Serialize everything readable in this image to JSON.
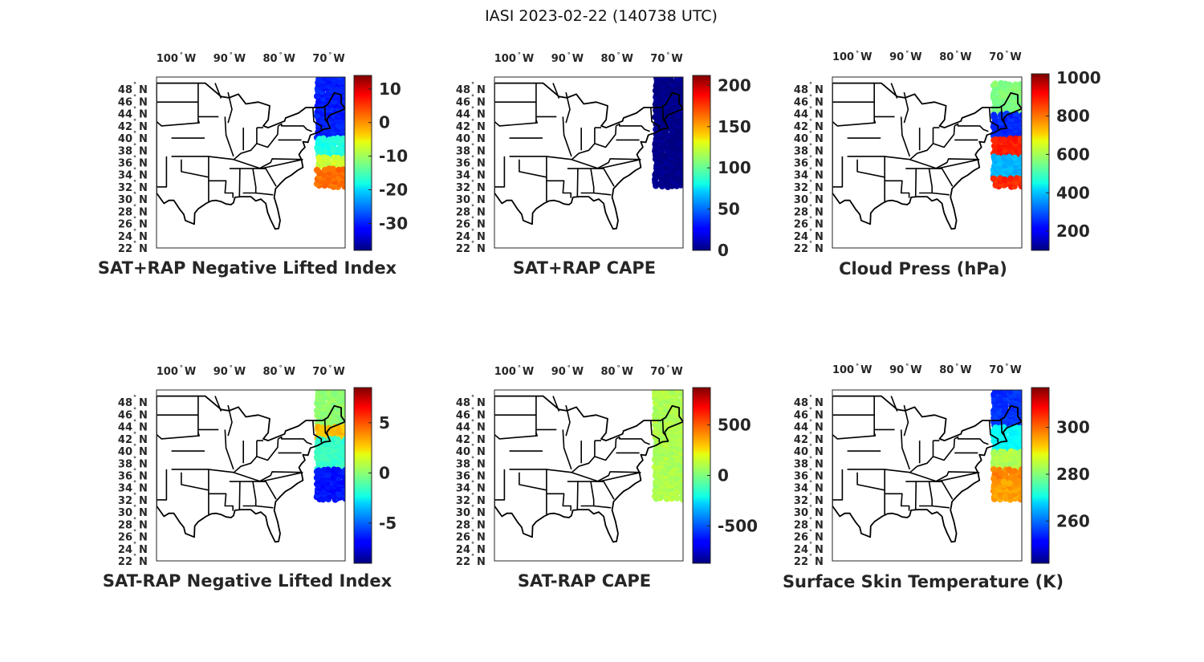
{
  "suptitle": "IASI 2023-02-22 (140738 UTC)",
  "map": {
    "lon_ticks": [
      {
        "deg": "100",
        "sup": "°",
        "hemi": "W",
        "value": -100
      },
      {
        "deg": "90",
        "sup": "°",
        "hemi": "W",
        "value": -90
      },
      {
        "deg": "80",
        "sup": "°",
        "hemi": "W",
        "value": -80
      },
      {
        "deg": "70",
        "sup": "°",
        "hemi": "W",
        "value": -70
      }
    ],
    "lat_ticks": [
      {
        "deg": "48",
        "sup": "°",
        "hemi": "N",
        "value": 48
      },
      {
        "deg": "46",
        "sup": "°",
        "hemi": "N",
        "value": 46
      },
      {
        "deg": "44",
        "sup": "°",
        "hemi": "N",
        "value": 44
      },
      {
        "deg": "42",
        "sup": "°",
        "hemi": "N",
        "value": 42
      },
      {
        "deg": "40",
        "sup": "°",
        "hemi": "N",
        "value": 40
      },
      {
        "deg": "38",
        "sup": "°",
        "hemi": "N",
        "value": 38
      },
      {
        "deg": "36",
        "sup": "°",
        "hemi": "N",
        "value": 36
      },
      {
        "deg": "34",
        "sup": "°",
        "hemi": "N",
        "value": 34
      },
      {
        "deg": "32",
        "sup": "°",
        "hemi": "N",
        "value": 32
      },
      {
        "deg": "30",
        "sup": "°",
        "hemi": "N",
        "value": 30
      },
      {
        "deg": "28",
        "sup": "°",
        "hemi": "N",
        "value": 28
      },
      {
        "deg": "26",
        "sup": "°",
        "hemi": "N",
        "value": 26
      },
      {
        "deg": "24",
        "sup": "°",
        "hemi": "N",
        "value": 24
      },
      {
        "deg": "22",
        "sup": "°",
        "hemi": "N",
        "value": 22
      }
    ],
    "lon_range": [
      -105,
      -67
    ],
    "lat_range": [
      22,
      50
    ],
    "colormap": "jet"
  },
  "chart_data": [
    {
      "type": "scatter",
      "title": "SAT+RAP Negative Lifted Index",
      "colorbar": {
        "ticks": [
          "10",
          "0",
          "-10",
          "-20",
          "-30"
        ],
        "tick_values": [
          10,
          0,
          -10,
          -20,
          -30
        ],
        "clim": [
          -38,
          14
        ]
      },
      "regions": [
        {
          "lat": [
            40,
            50
          ],
          "value": -30
        },
        {
          "lat": [
            37,
            40
          ],
          "value": -17
        },
        {
          "lat": [
            35,
            37
          ],
          "value": -8
        },
        {
          "lat": [
            32,
            35
          ],
          "value": 2
        }
      ]
    },
    {
      "type": "scatter",
      "title": "SAT+RAP CAPE",
      "colorbar": {
        "ticks": [
          "200",
          "150",
          "100",
          "50",
          "0"
        ],
        "tick_values": [
          200,
          150,
          100,
          50,
          0
        ],
        "clim": [
          0,
          212
        ]
      },
      "regions": [
        {
          "lat": [
            32,
            50
          ],
          "value": 2
        }
      ]
    },
    {
      "type": "scatter",
      "title": "Cloud Press (hPa)",
      "colorbar": {
        "ticks": [
          "1000",
          "800",
          "600",
          "400",
          "200"
        ],
        "tick_values": [
          1000,
          800,
          600,
          400,
          200
        ],
        "clim": [
          100,
          1020
        ]
      },
      "regions": [
        {
          "lat": [
            44,
            49
          ],
          "value": 560
        },
        {
          "lat": [
            39,
            44
          ],
          "value": 250
        },
        {
          "lat": [
            37,
            40
          ],
          "value": 880
        },
        {
          "lat": [
            33,
            37
          ],
          "value": 380
        },
        {
          "lat": [
            32,
            33.5
          ],
          "value": 870
        }
      ]
    },
    {
      "type": "scatter",
      "title": "SAT-RAP Negative Lifted Index",
      "colorbar": {
        "ticks": [
          "5",
          "0",
          "-5"
        ],
        "tick_values": [
          5,
          0,
          -5
        ],
        "clim": [
          -9,
          8.5
        ]
      },
      "regions": [
        {
          "lat": [
            44,
            50
          ],
          "value": 0
        },
        {
          "lat": [
            42,
            44
          ],
          "value": 3
        },
        {
          "lat": [
            37,
            42
          ],
          "value": -1.5
        },
        {
          "lat": [
            32,
            37
          ],
          "value": -6.5
        }
      ]
    },
    {
      "type": "scatter",
      "title": "SAT-RAP CAPE",
      "colorbar": {
        "ticks": [
          "500",
          "0",
          "-500"
        ],
        "tick_values": [
          500,
          0,
          -500
        ],
        "clim": [
          -870,
          870
        ]
      },
      "regions": [
        {
          "lat": [
            32,
            50
          ],
          "value": 80
        }
      ]
    },
    {
      "type": "scatter",
      "title": "Surface Skin Temperature (K)",
      "colorbar": {
        "ticks": [
          "300",
          "280",
          "260"
        ],
        "tick_values": [
          300,
          280,
          260
        ],
        "clim": [
          242,
          317
        ]
      },
      "regions": [
        {
          "lat": [
            44,
            50
          ],
          "value": 255
        },
        {
          "lat": [
            40,
            44
          ],
          "value": 270
        },
        {
          "lat": [
            37,
            40
          ],
          "value": 283
        },
        {
          "lat": [
            35,
            37
          ],
          "value": 298
        },
        {
          "lat": [
            32,
            35
          ],
          "value": 296
        }
      ]
    }
  ]
}
